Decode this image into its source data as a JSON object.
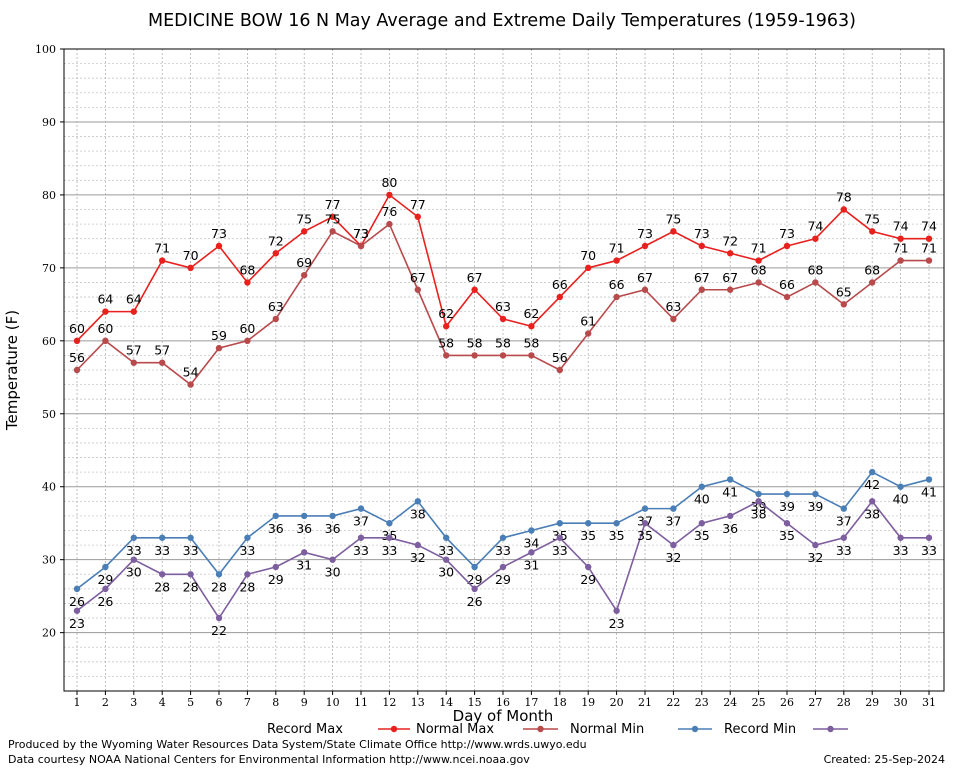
{
  "chart_data": {
    "type": "line",
    "title": "MEDICINE BOW 16 N May Average and Extreme Daily Temperatures (1959-1963)",
    "xlabel": "Day of Month",
    "ylabel": "Temperature (F)",
    "ylim": [
      12,
      100
    ],
    "y_ticks": [
      "20",
      "30",
      "40",
      "50",
      "60",
      "70",
      "80",
      "90",
      "100"
    ],
    "x": [
      "1",
      "2",
      "3",
      "4",
      "5",
      "6",
      "7",
      "8",
      "9",
      "10",
      "11",
      "12",
      "13",
      "14",
      "15",
      "16",
      "17",
      "18",
      "19",
      "20",
      "21",
      "22",
      "23",
      "24",
      "25",
      "26",
      "27",
      "28",
      "29",
      "30",
      "31"
    ],
    "grid": true,
    "legend_position": "bottom",
    "series": [
      {
        "name": "Record Max",
        "color": "#e8201e",
        "label_pos": "above",
        "values": [
          60,
          64,
          64,
          71,
          70,
          73,
          68,
          72,
          75,
          77,
          73,
          80,
          77,
          62,
          67,
          63,
          62,
          66,
          70,
          71,
          73,
          75,
          73,
          72,
          71,
          73,
          74,
          78,
          75,
          74,
          74
        ]
      },
      {
        "name": "Normal Max",
        "color": "#b84a4c",
        "label_pos": "above",
        "values": [
          56,
          60,
          57,
          57,
          54,
          59,
          60,
          63,
          69,
          75,
          73,
          76,
          67,
          58,
          58,
          58,
          58,
          56,
          61,
          66,
          67,
          63,
          67,
          67,
          68,
          66,
          68,
          65,
          68,
          71,
          71
        ]
      },
      {
        "name": "Normal Min",
        "color": "#4a7eb6",
        "label_pos": "below",
        "values": [
          26,
          29,
          33,
          33,
          33,
          28,
          33,
          36,
          36,
          36,
          37,
          35,
          38,
          33,
          29,
          33,
          34,
          35,
          35,
          35,
          37,
          37,
          40,
          41,
          39,
          39,
          39,
          37,
          42,
          40,
          41
        ]
      },
      {
        "name": "Record Min",
        "color": "#7d5e9f",
        "label_pos": "below",
        "values": [
          23,
          26,
          30,
          28,
          28,
          22,
          28,
          29,
          31,
          30,
          33,
          33,
          32,
          30,
          26,
          29,
          31,
          33,
          29,
          23,
          35,
          32,
          35,
          36,
          38,
          35,
          32,
          33,
          38,
          33,
          33
        ]
      }
    ]
  },
  "footer": {
    "produced_by": "Produced by the Wyoming Water Resources Data System/State Climate Office http://www.wrds.uwyo.edu",
    "data_courtesy": "Data courtesy NOAA National Centers for Environmental Information http://www.ncei.noaa.gov",
    "created": "Created: 25-Sep-2024"
  }
}
